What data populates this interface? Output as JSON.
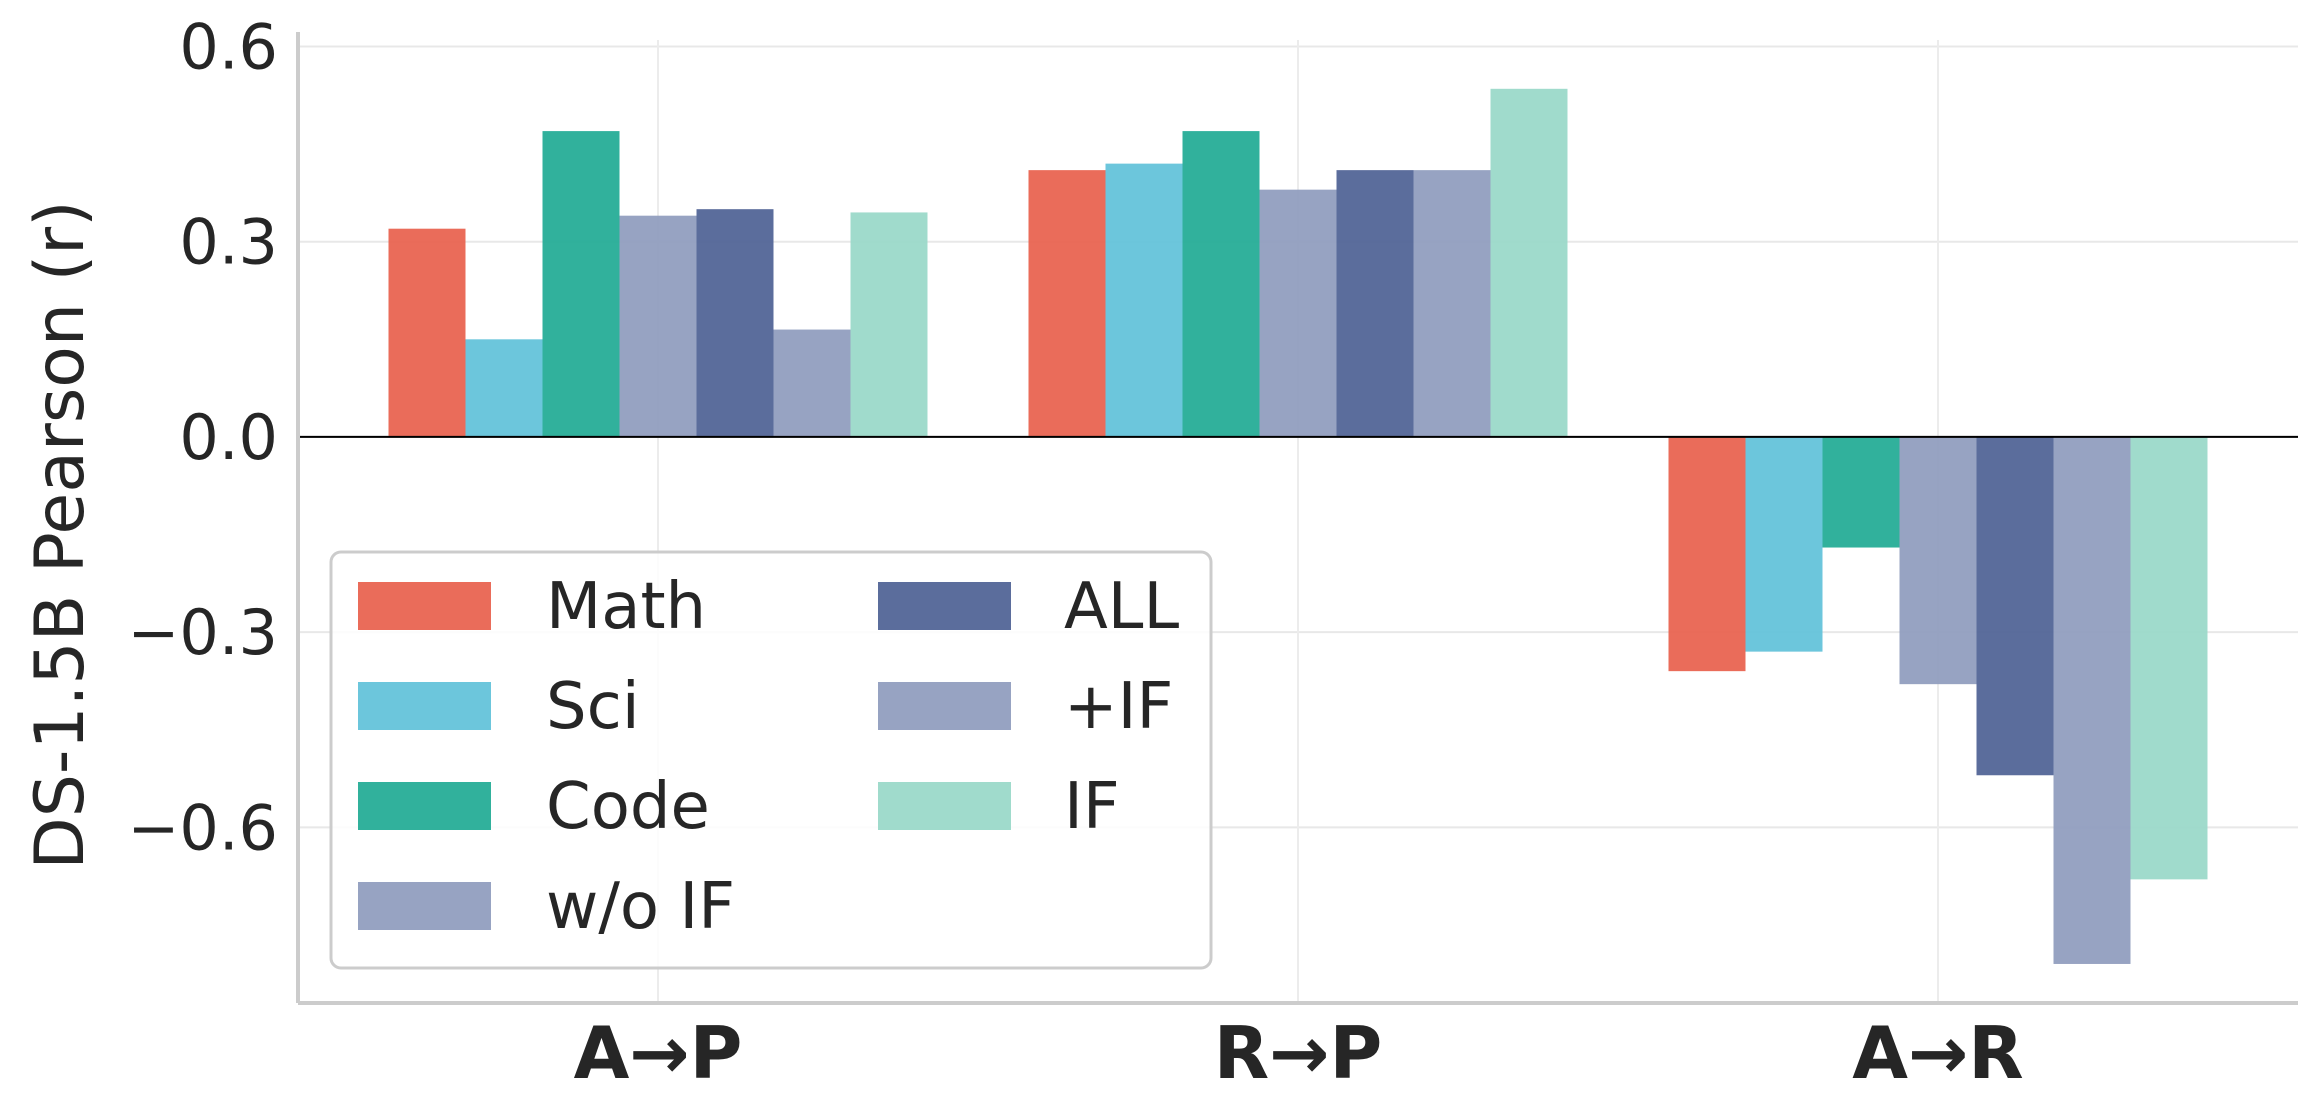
{
  "chart_data": {
    "type": "bar",
    "title": "",
    "xlabel": "",
    "ylabel": "DS-1.5B Pearson (r)",
    "ylim": [
      -0.87,
      0.61
    ],
    "yticks": [
      0.6,
      0.3,
      0.0,
      -0.3,
      -0.6
    ],
    "ytick_labels": [
      "0.6",
      "0.3",
      "0.0",
      "−0.3",
      "−0.6"
    ],
    "grid": true,
    "legend_position": "lower-left",
    "legend_columns": 2,
    "categories": [
      "A→P",
      "R→P",
      "A→R"
    ],
    "series": [
      {
        "name": "Math",
        "color": "#E8604C",
        "values": [
          0.32,
          0.41,
          -0.36
        ]
      },
      {
        "name": "Sci",
        "color": "#5FC1D9",
        "values": [
          0.15,
          0.42,
          -0.33
        ]
      },
      {
        "name": "Code",
        "color": "#1FAA94",
        "values": [
          0.47,
          0.47,
          -0.17
        ]
      },
      {
        "name": "w/o IF",
        "color": "#8E9BBD",
        "values": [
          0.34,
          0.38,
          -0.38
        ]
      },
      {
        "name": "ALL",
        "color": "#4D6194",
        "values": [
          0.35,
          0.41,
          -0.52
        ]
      },
      {
        "name": "+IF",
        "color": "#8E9BBD",
        "values": [
          0.165,
          0.41,
          -0.81
        ]
      },
      {
        "name": "IF",
        "color": "#98D8C8",
        "values": [
          0.345,
          0.535,
          -0.68
        ]
      }
    ]
  }
}
